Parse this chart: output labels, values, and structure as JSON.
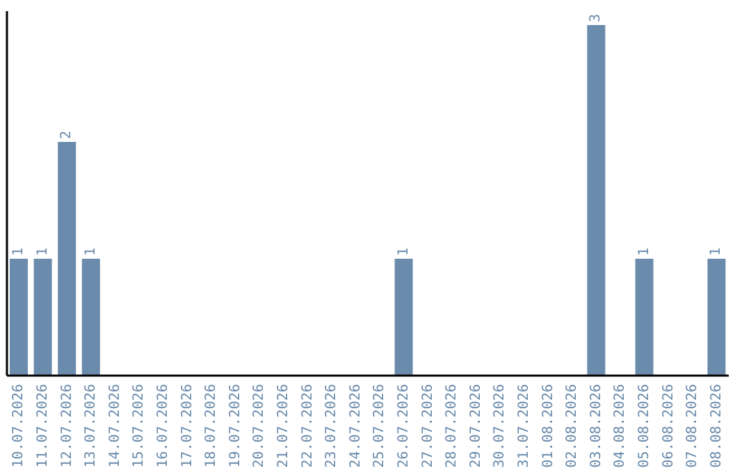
{
  "chart_data": {
    "type": "bar",
    "categories": [
      "10.07.2026",
      "11.07.2026",
      "12.07.2026",
      "13.07.2026",
      "14.07.2026",
      "15.07.2026",
      "16.07.2026",
      "17.07.2026",
      "18.07.2026",
      "19.07.2026",
      "20.07.2026",
      "21.07.2026",
      "22.07.2026",
      "23.07.2026",
      "24.07.2026",
      "25.07.2026",
      "26.07.2026",
      "27.07.2026",
      "28.07.2026",
      "29.07.2026",
      "30.07.2026",
      "31.07.2026",
      "01.08.2026",
      "02.08.2026",
      "03.08.2026",
      "04.08.2026",
      "05.08.2026",
      "06.08.2026",
      "07.08.2026",
      "08.08.2026"
    ],
    "values": [
      1,
      1,
      2,
      1,
      0,
      0,
      0,
      0,
      0,
      0,
      0,
      0,
      0,
      0,
      0,
      0,
      1,
      0,
      0,
      0,
      0,
      0,
      0,
      0,
      3,
      0,
      1,
      0,
      0,
      1
    ],
    "value_labels": [
      "1",
      "1",
      "2",
      "1",
      null,
      null,
      null,
      null,
      null,
      null,
      null,
      null,
      null,
      null,
      null,
      null,
      "1",
      null,
      null,
      null,
      null,
      null,
      null,
      null,
      "3",
      null,
      "1",
      null,
      null,
      "1"
    ],
    "color": "#6a8bab",
    "grid": false,
    "legend": false
  }
}
